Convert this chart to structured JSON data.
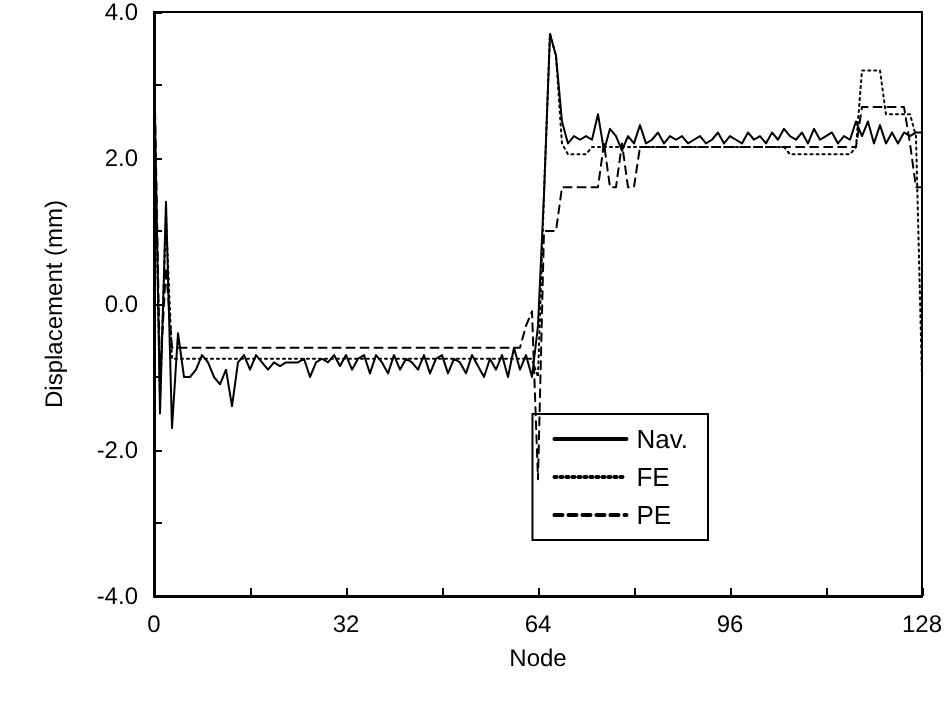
{
  "chart_data": {
    "type": "line",
    "xlabel": "Node",
    "ylabel": "Displacement (mm)",
    "xlim": [
      0,
      128
    ],
    "xticks": [
      0,
      {
        "value": 16,
        "label": null
      },
      32,
      {
        "value": 48,
        "label": null
      },
      64,
      {
        "value": 80,
        "label": null
      },
      96,
      {
        "value": 112,
        "label": null
      },
      128
    ],
    "ylim": [
      -4,
      4
    ],
    "yticks": [
      {
        "value": -4,
        "label": "-4.0"
      },
      {
        "value": -3,
        "label": null
      },
      {
        "value": -2,
        "label": "-2.0"
      },
      {
        "value": -1,
        "label": null
      },
      {
        "value": 0,
        "label": "0.0"
      },
      {
        "value": 1,
        "label": null
      },
      {
        "value": 2,
        "label": "2.0"
      },
      {
        "value": 3,
        "label": null
      },
      {
        "value": 4,
        "label": "4.0"
      }
    ],
    "grid": false,
    "legend": "bottom right",
    "marker": "none",
    "series": [
      {
        "name": "Nav.",
        "color": "#000000",
        "line_style": "solid",
        "x": [
          0,
          1,
          2,
          3,
          4,
          5,
          6,
          7,
          8,
          9,
          10,
          11,
          12,
          13,
          14,
          15,
          16,
          17,
          18,
          19,
          20,
          21,
          22,
          23,
          24,
          25,
          26,
          27,
          28,
          29,
          30,
          31,
          32,
          33,
          34,
          35,
          36,
          37,
          38,
          39,
          40,
          41,
          42,
          43,
          44,
          45,
          46,
          47,
          48,
          49,
          50,
          51,
          52,
          53,
          54,
          55,
          56,
          57,
          58,
          59,
          60,
          61,
          62,
          63,
          64,
          65,
          66,
          67,
          68,
          69,
          70,
          71,
          72,
          73,
          74,
          75,
          76,
          77,
          78,
          79,
          80,
          81,
          82,
          83,
          84,
          85,
          86,
          87,
          88,
          89,
          90,
          91,
          92,
          93,
          94,
          95,
          96,
          97,
          98,
          99,
          100,
          101,
          102,
          103,
          104,
          105,
          106,
          107,
          108,
          109,
          110,
          111,
          112,
          113,
          114,
          115,
          116,
          117,
          118,
          119,
          120,
          121,
          122,
          123,
          124,
          125,
          126,
          127,
          128
        ],
        "values": [
          3.4,
          -1.5,
          1.4,
          -1.7,
          -0.4,
          -1.0,
          -1.0,
          -0.9,
          -0.7,
          -0.8,
          -1.0,
          -1.1,
          -0.9,
          -1.4,
          -0.8,
          -0.7,
          -0.9,
          -0.7,
          -0.8,
          -0.9,
          -0.8,
          -0.85,
          -0.8,
          -0.8,
          -0.8,
          -0.75,
          -1.0,
          -0.8,
          -0.75,
          -0.8,
          -0.7,
          -0.85,
          -0.7,
          -0.9,
          -0.75,
          -0.7,
          -0.95,
          -0.7,
          -0.8,
          -0.95,
          -0.7,
          -0.9,
          -0.75,
          -0.8,
          -0.9,
          -0.7,
          -0.95,
          -0.75,
          -0.7,
          -0.95,
          -0.75,
          -0.8,
          -0.95,
          -0.7,
          -0.85,
          -1.0,
          -0.75,
          -0.9,
          -0.7,
          -1.0,
          -0.6,
          -0.9,
          -0.7,
          -1.0,
          -0.3,
          1.5,
          3.7,
          3.4,
          2.5,
          2.2,
          2.3,
          2.25,
          2.3,
          2.25,
          2.6,
          2.1,
          2.4,
          2.3,
          2.1,
          2.3,
          2.2,
          2.45,
          2.2,
          2.25,
          2.35,
          2.2,
          2.3,
          2.25,
          2.3,
          2.2,
          2.25,
          2.3,
          2.2,
          2.25,
          2.35,
          2.2,
          2.3,
          2.25,
          2.2,
          2.35,
          2.25,
          2.3,
          2.2,
          2.35,
          2.25,
          2.4,
          2.3,
          2.25,
          2.35,
          2.2,
          2.4,
          2.25,
          2.3,
          2.35,
          2.2,
          2.3,
          2.25,
          2.5,
          2.3,
          2.5,
          2.2,
          2.45,
          2.2,
          2.35,
          2.2,
          2.35,
          2.3,
          2.35,
          2.35
        ]
      },
      {
        "name": "FE",
        "color": "#000000",
        "line_style": "dotted",
        "x": [
          0,
          1,
          2,
          3,
          63,
          64,
          65,
          66,
          67,
          68,
          69,
          72,
          73,
          105,
          106,
          116,
          117,
          118,
          121,
          122,
          126,
          127,
          128
        ],
        "values": [
          3.0,
          -1.3,
          1.2,
          -0.75,
          -0.75,
          -1.0,
          1.5,
          3.7,
          3.4,
          2.2,
          2.05,
          2.05,
          2.15,
          2.15,
          2.05,
          2.05,
          2.15,
          3.2,
          3.2,
          2.6,
          2.6,
          2.3,
          -1.0
        ]
      },
      {
        "name": "PE",
        "color": "#000000",
        "line_style": "dashed",
        "x": [
          0,
          1,
          2,
          3,
          61,
          62,
          63,
          64,
          65,
          67,
          68,
          74,
          75,
          76,
          77,
          78,
          79,
          80,
          81,
          117,
          118,
          125,
          126,
          127,
          128
        ],
        "values": [
          3.4,
          -1.0,
          0.5,
          -0.6,
          -0.6,
          -0.3,
          -0.1,
          -2.4,
          1.0,
          1.0,
          1.6,
          1.6,
          2.2,
          1.6,
          1.6,
          2.2,
          1.6,
          1.6,
          2.15,
          2.15,
          2.7,
          2.7,
          2.2,
          1.6,
          1.6
        ]
      }
    ]
  }
}
